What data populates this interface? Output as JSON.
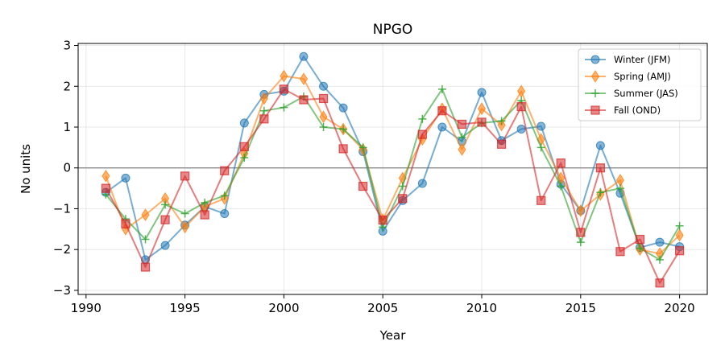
{
  "chart_data": {
    "type": "line",
    "title": "NPGO",
    "xlabel": "Year",
    "ylabel": "No units",
    "xlim": [
      1989.6,
      2021.4
    ],
    "ylim": [
      -3.1,
      3.05
    ],
    "xticks": [
      1990,
      1995,
      2000,
      2005,
      2010,
      2015,
      2020
    ],
    "yticks": [
      -3,
      -2,
      -1,
      0,
      1,
      2,
      3
    ],
    "grid": true,
    "legend": "top-right",
    "x": [
      1991,
      1992,
      1993,
      1994,
      1995,
      1996,
      1997,
      1998,
      1999,
      2000,
      2001,
      2002,
      2003,
      2004,
      2005,
      2006,
      2007,
      2008,
      2009,
      2010,
      2011,
      2012,
      2013,
      2014,
      2015,
      2016,
      2017,
      2018,
      2019,
      2020
    ],
    "series": [
      {
        "name": "Winter (JFM)",
        "color": "#1f77b4",
        "marker": "circle",
        "values": [
          -0.6,
          -0.25,
          -2.25,
          -1.9,
          -1.4,
          -0.95,
          -1.12,
          1.1,
          1.8,
          1.88,
          2.73,
          2.0,
          1.47,
          0.4,
          -1.55,
          -0.8,
          -0.38,
          1.0,
          0.65,
          1.85,
          0.67,
          0.95,
          1.02,
          -0.4,
          -1.05,
          0.55,
          -0.62,
          -1.95,
          -1.82,
          -1.93
        ]
      },
      {
        "name": "Spring (AMJ)",
        "color": "#ff7f0e",
        "marker": "diamond",
        "values": [
          -0.2,
          -1.5,
          -1.15,
          -0.75,
          -1.45,
          -0.95,
          -0.75,
          0.35,
          1.7,
          2.25,
          2.18,
          1.25,
          0.95,
          0.45,
          -1.27,
          -0.25,
          0.7,
          1.45,
          0.45,
          1.45,
          1.05,
          1.88,
          0.7,
          -0.25,
          -1.05,
          -0.65,
          -0.3,
          -2.0,
          -2.1,
          -1.65
        ]
      },
      {
        "name": "Summer (JAS)",
        "color": "#2ca02c",
        "marker": "plus",
        "values": [
          -0.65,
          -1.25,
          -1.75,
          -0.9,
          -1.12,
          -0.85,
          -0.68,
          0.25,
          1.4,
          1.48,
          1.75,
          1.0,
          0.95,
          0.5,
          -1.45,
          -0.45,
          1.2,
          1.93,
          0.75,
          1.1,
          1.15,
          1.65,
          0.5,
          -0.45,
          -1.82,
          -0.6,
          -0.5,
          -1.97,
          -2.25,
          -1.42
        ]
      },
      {
        "name": "Fall (OND)",
        "color": "#d62728",
        "marker": "square",
        "values": [
          -0.5,
          -1.37,
          -2.43,
          -1.27,
          -0.2,
          -1.15,
          -0.07,
          0.52,
          1.2,
          1.93,
          1.67,
          1.7,
          0.47,
          -0.45,
          -1.28,
          -0.75,
          0.82,
          1.4,
          1.07,
          1.12,
          0.58,
          1.5,
          -0.8,
          0.12,
          -1.58,
          0.0,
          -2.05,
          -1.75,
          -2.82,
          -2.03
        ]
      }
    ]
  }
}
